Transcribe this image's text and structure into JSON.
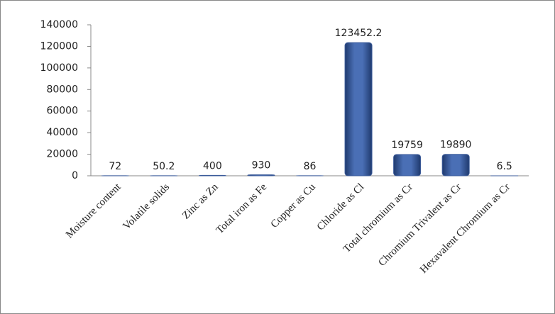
{
  "chart_data": {
    "type": "bar",
    "categories": [
      "Moisture content",
      "Volatile solids",
      "Zinc as Zn",
      "Total iron as Fe",
      "Copper as Cu",
      "Chloride as Cl",
      "Total chromium as Cr",
      "Chromium Trivalent as Cr",
      "Hexavalent Chromium as Cr"
    ],
    "values": [
      72,
      50.2,
      400,
      930,
      86,
      123452.2,
      19759,
      19890,
      6.5
    ],
    "color": "#3b5b9a",
    "ylim": [
      0,
      140000
    ],
    "yticks": [
      0,
      20000,
      40000,
      60000,
      80000,
      100000,
      120000,
      140000
    ],
    "grid": false
  }
}
